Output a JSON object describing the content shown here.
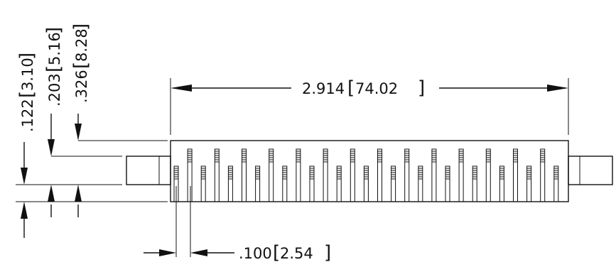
{
  "dimensions": {
    "overall_length": {
      "inch": "2.914",
      "mm": "74.02"
    },
    "pitch": {
      "inch": ".100",
      "mm": "2.54"
    },
    "height_a": {
      "inch": ".122",
      "mm": "3.10"
    },
    "height_b": {
      "inch": ".203",
      "mm": "5.16"
    },
    "height_c": {
      "inch": ".326",
      "mm": "8.28"
    }
  },
  "connector": {
    "lower_pin_count": 15,
    "upper_pin_count": 14
  }
}
